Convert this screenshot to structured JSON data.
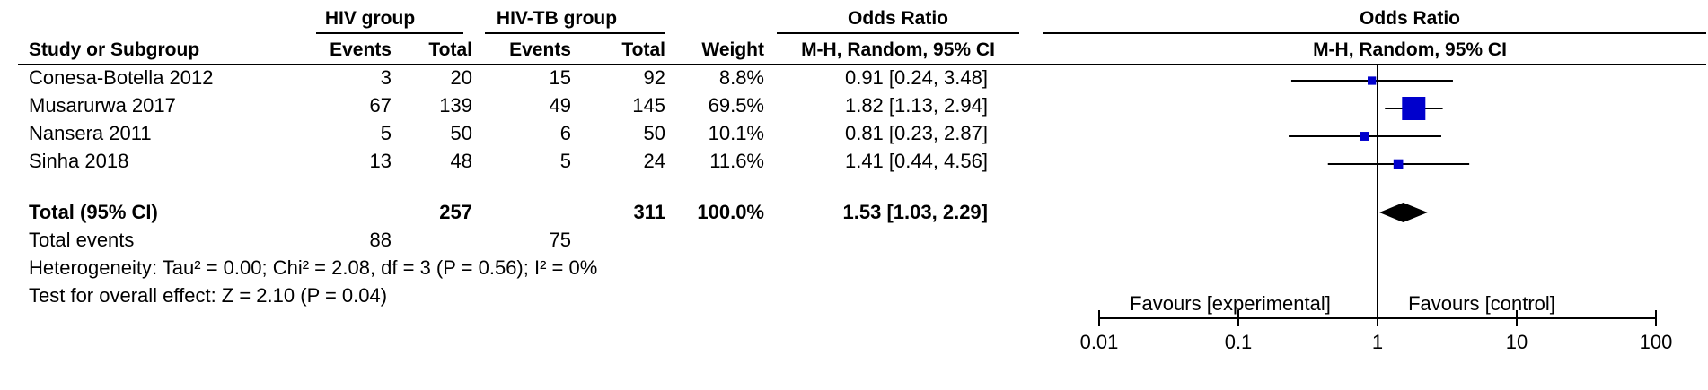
{
  "chart_data": {
    "type": "forest",
    "headers": {
      "group1": "HIV group",
      "group2": "HIV-TB group",
      "study_col": "Study or Subgroup",
      "events": "Events",
      "total": "Total",
      "weight": "Weight",
      "or_title": "Odds Ratio",
      "or_method": "M-H, Random, 95% CI",
      "plot_title": "Odds Ratio",
      "plot_method": "M-H, Random, 95% CI"
    },
    "studies": [
      {
        "name": "Conesa-Botella 2012",
        "e1": "3",
        "n1": "20",
        "e2": "15",
        "n2": "92",
        "weight": "8.8%",
        "weight_value": 8.8,
        "or_text": "0.91 [0.24, 3.48]",
        "or": 0.91,
        "lo": 0.24,
        "hi": 3.48
      },
      {
        "name": "Musarurwa 2017",
        "e1": "67",
        "n1": "139",
        "e2": "49",
        "n2": "145",
        "weight": "69.5%",
        "weight_value": 69.5,
        "or_text": "1.82 [1.13, 2.94]",
        "or": 1.82,
        "lo": 1.13,
        "hi": 2.94
      },
      {
        "name": "Nansera 2011",
        "e1": "5",
        "n1": "50",
        "e2": "6",
        "n2": "50",
        "weight": "10.1%",
        "weight_value": 10.1,
        "or_text": "0.81 [0.23, 2.87]",
        "or": 0.81,
        "lo": 0.23,
        "hi": 2.87
      },
      {
        "name": "Sinha 2018",
        "e1": "13",
        "n1": "48",
        "e2": "5",
        "n2": "24",
        "weight": "11.6%",
        "weight_value": 11.6,
        "or_text": "1.41 [0.44, 4.56]",
        "or": 1.41,
        "lo": 0.44,
        "hi": 4.56
      }
    ],
    "total": {
      "label": "Total (95% CI)",
      "n1": "257",
      "n2": "311",
      "weight": "100.0%",
      "or_text": "1.53 [1.03, 2.29]",
      "or": 1.53,
      "lo": 1.03,
      "hi": 2.29
    },
    "total_events": {
      "label": "Total events",
      "e1": "88",
      "e2": "75"
    },
    "heterogeneity": "Heterogeneity: Tau² = 0.00; Chi² = 2.08, df = 3 (P = 0.56); I² = 0%",
    "overall_effect": "Test for overall effect: Z = 2.10 (P = 0.04)",
    "x_axis": {
      "scale": "log",
      "range": [
        0.01,
        100
      ],
      "ticks": [
        0.01,
        0.1,
        1,
        10,
        100
      ],
      "tick_labels": [
        "0.01",
        "0.1",
        "1",
        "10",
        "100"
      ],
      "null_value": 1
    },
    "favours_left": "Favours [experimental]",
    "favours_right": "Favours [control]",
    "colors": {
      "study_marker": "#0000cc",
      "total_marker": "#000000",
      "lines": "#000000"
    }
  }
}
